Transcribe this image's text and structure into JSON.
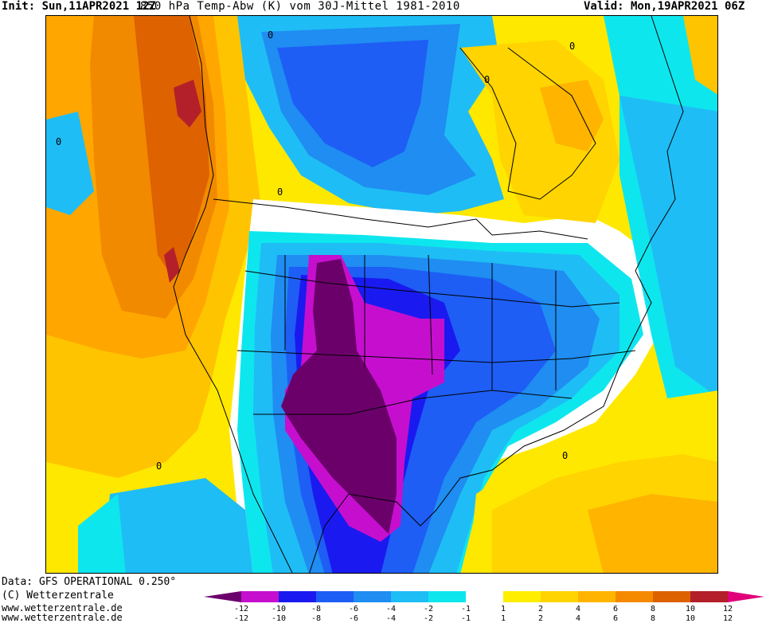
{
  "header": {
    "init": "Init: Sun,11APR2021 12Z",
    "title": "850 hPa Temp-Abw (K) vom 30J-Mittel 1981-2010",
    "valid": "Valid: Mon,19APR2021 06Z"
  },
  "footer": {
    "data_source": "Data: GFS OPERATIONAL 0.250°",
    "copyright": "(C) Wetterzentrale",
    "url1": "www.wetterzentrale.de",
    "url2": "www.wetterzentrale.de"
  },
  "colors": {
    "minus12": "#6b006b",
    "minus10": "#c60fce",
    "minus8": "#1a1af0",
    "minus6": "#1e5ef5",
    "minus4": "#1f8df2",
    "minus2": "#1fbdf5",
    "minus1": "#0ee6ee",
    "zero": "#ffffff",
    "plus1": "#ffee00",
    "plus2": "#ffd400",
    "plus4": "#ffb400",
    "plus6": "#f58a00",
    "plus8": "#de6100",
    "plus10": "#b4202a",
    "plus12": "#e0007a",
    "coastline": "#000000"
  },
  "map_labels": {
    "contour_zero": "0"
  },
  "legend": {
    "top_labels": [
      "-12",
      "-10",
      "-8",
      "-6",
      "-4",
      "-2",
      "-1",
      "1",
      "2",
      "4",
      "6",
      "8",
      "10",
      "12"
    ],
    "bottom_labels": [
      "-12",
      "-10",
      "-8",
      "-6",
      "-4",
      "-2",
      "-1",
      "1",
      "2",
      "4",
      "6",
      "8",
      "10",
      "12"
    ]
  }
}
